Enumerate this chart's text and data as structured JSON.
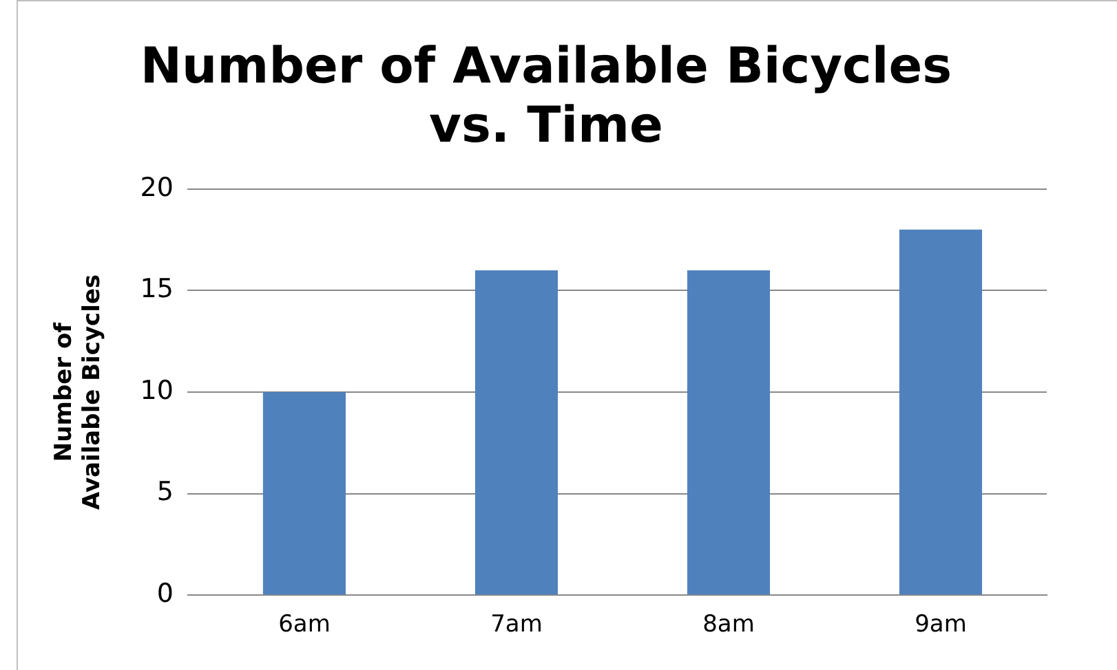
{
  "chart_data": {
    "type": "bar",
    "title": "Number of Available Bicycles\nvs. Time",
    "ylabel": "Number of\nAvailable Bicycles",
    "categories": [
      "6am",
      "7am",
      "8am",
      "9am"
    ],
    "values": [
      10,
      16,
      16,
      18
    ],
    "color": "#4f81bd",
    "ylim": [
      0,
      20
    ],
    "yticks": [
      0,
      5,
      10,
      15,
      20
    ],
    "grid": "y",
    "legend": false
  }
}
